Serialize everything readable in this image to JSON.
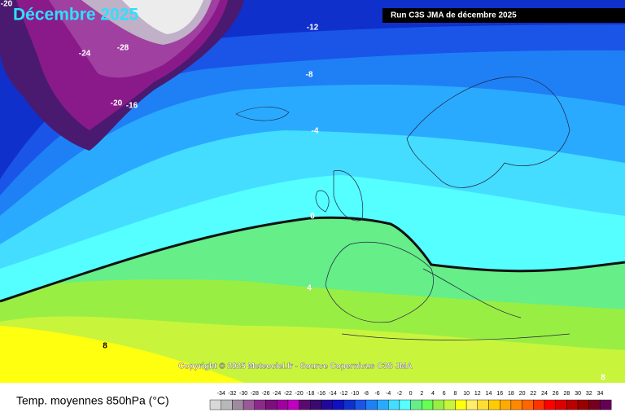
{
  "header": {
    "title": "Décembre 2025",
    "run": "Run C3S JMA de décembre 2025"
  },
  "contour_labels": [
    "-20",
    "-24",
    "-28",
    "-20",
    "-16",
    "-12",
    "-8",
    "-4",
    "0",
    "4",
    "8",
    "8"
  ],
  "copyright": "Copyright © 2025 Meteociel.fr - Source Copernicus C3S JMA",
  "legend": {
    "title": "Temp. moyennes 850hPa (°C)",
    "labels": [
      "-34",
      "-32",
      "-30",
      "-28",
      "-26",
      "-24",
      "-22",
      "-20",
      "-18",
      "-16",
      "-14",
      "-12",
      "-10",
      "-8",
      "-6",
      "-4",
      "-2",
      "0",
      "2",
      "4",
      "6",
      "8",
      "10",
      "12",
      "14",
      "16",
      "18",
      "20",
      "22",
      "24",
      "26",
      "28",
      "30",
      "32",
      "34"
    ]
  }
}
